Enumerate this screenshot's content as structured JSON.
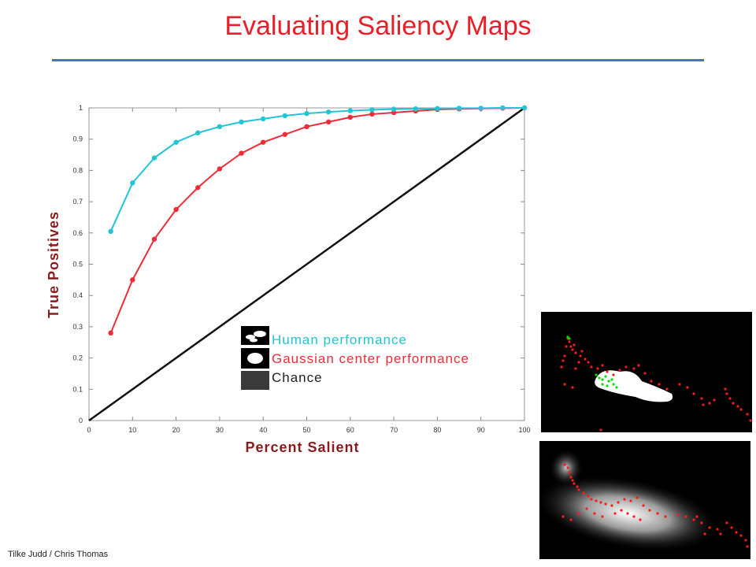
{
  "slide": {
    "title": "Evaluating Saliency Maps",
    "credit": "Tilke Judd / Chris Thomas"
  },
  "colors": {
    "title": "#e8202a",
    "rule": "#4a72c4",
    "human": "#22c4d8",
    "gaussian": "#ee2c38",
    "chance": "#111111",
    "axis_label": "#8b1a1a"
  },
  "chart_data": {
    "type": "line",
    "xlabel": "Percent Salient",
    "ylabel": "True Positives",
    "xlim": [
      0,
      100
    ],
    "ylim": [
      0,
      1
    ],
    "x_ticks": [
      "0",
      "10",
      "20",
      "30",
      "40",
      "50",
      "60",
      "70",
      "80",
      "90",
      "100"
    ],
    "y_ticks": [
      "0",
      "0.1",
      "0.2",
      "0.3",
      "0.4",
      "0.5",
      "0.6",
      "0.7",
      "0.8",
      "0.9",
      "1"
    ],
    "grid": false,
    "legend_position": "center",
    "series": [
      {
        "name": "Human performance",
        "color": "#22c4d8",
        "x": [
          5,
          10,
          15,
          20,
          25,
          30,
          35,
          40,
          45,
          50,
          55,
          60,
          65,
          70,
          75,
          80,
          85,
          90,
          95,
          100
        ],
        "y": [
          0.605,
          0.76,
          0.84,
          0.89,
          0.92,
          0.94,
          0.955,
          0.965,
          0.975,
          0.982,
          0.987,
          0.991,
          0.994,
          0.996,
          0.997,
          0.998,
          0.999,
          0.999,
          1.0,
          1.0
        ]
      },
      {
        "name": "Gaussian center performance",
        "color": "#ee2c38",
        "x": [
          5,
          10,
          15,
          20,
          25,
          30,
          35,
          40,
          45,
          50,
          55,
          60,
          65,
          70,
          75,
          80,
          85,
          90,
          95,
          100
        ],
        "y": [
          0.28,
          0.45,
          0.58,
          0.675,
          0.745,
          0.805,
          0.855,
          0.89,
          0.915,
          0.94,
          0.955,
          0.97,
          0.98,
          0.985,
          0.99,
          0.995,
          0.997,
          0.998,
          0.999,
          1.0
        ]
      },
      {
        "name": "Chance",
        "color": "#111111",
        "x": [
          0,
          100
        ],
        "y": [
          0,
          1
        ]
      }
    ]
  },
  "thumbnails": [
    {
      "name": "human-saliency-map",
      "fixation_colors": [
        "#00e000",
        "#ff1a1a"
      ]
    },
    {
      "name": "gaussian-saliency-map",
      "fixation_colors": [
        "#ff1a1a"
      ]
    }
  ]
}
